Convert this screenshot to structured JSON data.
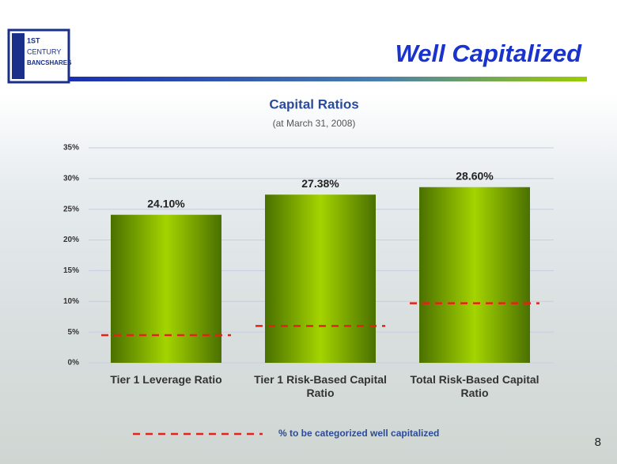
{
  "slide": {
    "heading": "Well Capitalized",
    "page_number": "8",
    "logo": [
      "1ST",
      "CENTURY",
      "BANCSHARES"
    ]
  },
  "chart_data": {
    "type": "bar",
    "title": "Capital Ratios",
    "subtitle": "(at March 31, 2008)",
    "categories": [
      "Tier 1 Leverage Ratio",
      "Tier 1 Risk-Based Capital Ratio",
      "Total Risk-Based Capital Ratio"
    ],
    "values": [
      24.1,
      27.38,
      28.6
    ],
    "value_labels": [
      "24.10%",
      "27.38%",
      "28.60%"
    ],
    "color": "#7fb000",
    "thresholds": {
      "name": "% to be categorized well capitalized",
      "color": "#e8201a",
      "values": [
        4.5,
        6,
        9.7
      ]
    },
    "ylim": [
      0,
      35
    ],
    "yticks": [
      {
        "value": 0,
        "label": "0%"
      },
      {
        "value": 5,
        "label": "5%"
      },
      {
        "value": 10,
        "label": "10%"
      },
      {
        "value": 15,
        "label": "15%"
      },
      {
        "value": 20,
        "label": "20%"
      },
      {
        "value": 25,
        "label": "25%"
      },
      {
        "value": 30,
        "label": "30%"
      },
      {
        "value": 35,
        "label": "35%"
      }
    ],
    "grid": true
  }
}
